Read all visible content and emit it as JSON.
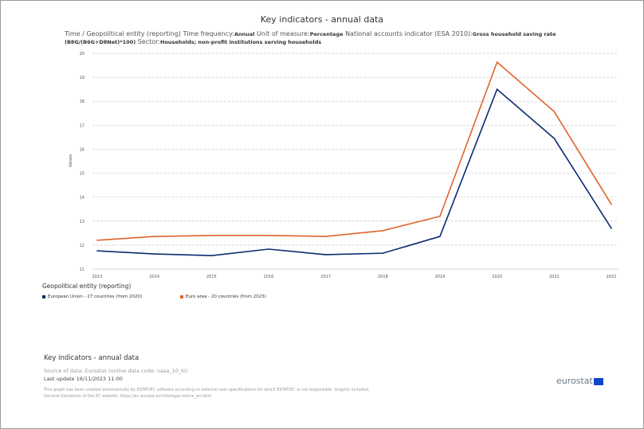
{
  "header": {
    "title": "Key indicators - annual data",
    "subtitle": [
      {
        "label": "Time / Geopolitical entity (reporting)  Time frequency:",
        "value": "Annual"
      },
      {
        "label": "  Unit of measure:",
        "value": "Percentage"
      },
      {
        "label": "  National accounts indicator (ESA 2010):",
        "value": "Gross household saving rate (B8G/(B6G+D8Net)*100)"
      },
      {
        "label": "  Sector:",
        "value": "Households; non-profit institutions serving households"
      }
    ]
  },
  "chart_data": {
    "type": "line",
    "title": "Key indicators - annual data",
    "xlabel": "",
    "ylabel": "Values",
    "ylim": [
      11,
      20
    ],
    "yticks": [
      "11",
      "12",
      "13",
      "14",
      "15",
      "16",
      "17",
      "18",
      "19",
      "20"
    ],
    "grid": true,
    "categories": [
      "2013",
      "2014",
      "2015",
      "2016",
      "2017",
      "2018",
      "2019",
      "2020",
      "2021",
      "2022"
    ],
    "legend_title": "Geopolitical entity (reporting)",
    "legend_position": "bottom-left",
    "series": [
      {
        "name": "European Union - 27 countries (from 2020)",
        "color": "#0b2a6f",
        "values": [
          11.76,
          11.63,
          11.56,
          11.83,
          11.6,
          11.66,
          12.36,
          18.5,
          16.45,
          12.7
        ]
      },
      {
        "name": "Euro area - 20 countries (from 2023)",
        "color": "#e0632b",
        "values": [
          12.2,
          12.36,
          12.4,
          12.4,
          12.36,
          12.6,
          13.2,
          19.63,
          17.57,
          13.7
        ]
      }
    ]
  },
  "footer": {
    "title": "Key indicators - annual data",
    "source": "Source of data: Eurostat (online data code: nasa_10_ki)",
    "last_update": "Last update 16/11/2023 11:00",
    "disclaimer1": "This graph has been created automatically by ESTAT/EC software according to external user specifications for which ESTAT/EC is not responsible. Graphic included.",
    "disclaimer2": "General disclaimer of the EC website: https://ec.europa.eu/info/legal-notice_en.html",
    "logo": "eurostat"
  }
}
